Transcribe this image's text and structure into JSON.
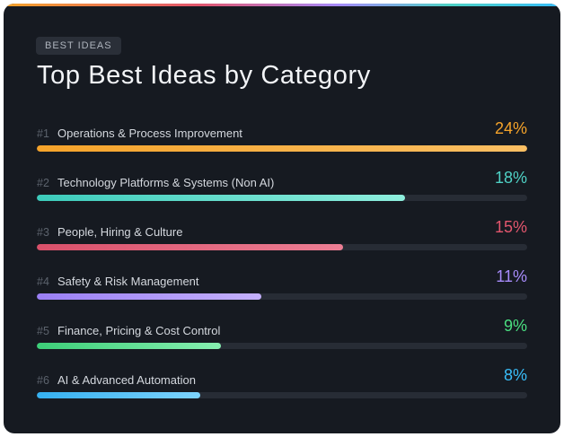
{
  "header": {
    "tag": "BEST IDEAS",
    "title": "Top Best Ideas by Category"
  },
  "chart_data": {
    "type": "bar",
    "orientation": "horizontal",
    "title": "Top Best Ideas by Category",
    "xlim": [
      0,
      24
    ],
    "grid": false,
    "categories": [
      "Operations & Process Improvement",
      "Technology Platforms & Systems (Non AI)",
      "People, Hiring & Culture",
      "Safety & Risk Management",
      "Finance, Pricing & Cost Control",
      "AI & Advanced Automation"
    ],
    "values": [
      24,
      18,
      15,
      11,
      9,
      8
    ],
    "ranks": [
      "#1",
      "#2",
      "#3",
      "#4",
      "#5",
      "#6"
    ],
    "value_labels": [
      "24%",
      "18%",
      "15%",
      "11%",
      "9%",
      "8%"
    ],
    "colors": [
      {
        "accent": "#f5a32a",
        "from": "#f5a32a",
        "to": "#fbbf63"
      },
      {
        "accent": "#4fd1c5",
        "from": "#3ccbbb",
        "to": "#8eeedd"
      },
      {
        "accent": "#e2566d",
        "from": "#d9506a",
        "to": "#ec7e94"
      },
      {
        "accent": "#a78bfa",
        "from": "#9a7ff4",
        "to": "#c4b0fc"
      },
      {
        "accent": "#4ade80",
        "from": "#3ccf78",
        "to": "#86efb0"
      },
      {
        "accent": "#38bdf8",
        "from": "#35b0f0",
        "to": "#7dd3fc"
      }
    ]
  }
}
